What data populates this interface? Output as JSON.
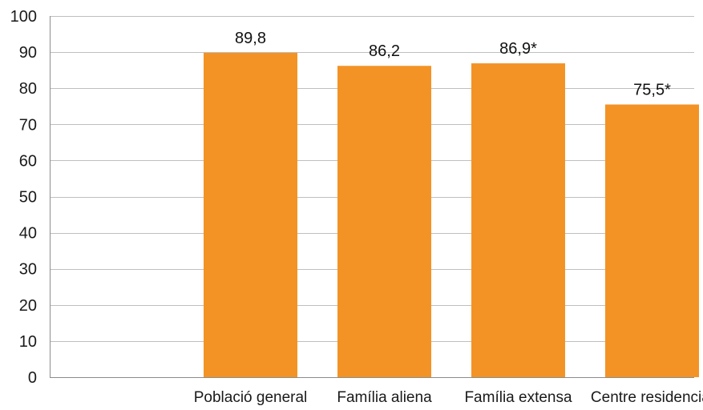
{
  "chart_data": {
    "type": "bar",
    "categories": [
      "Població general",
      "Família aliena",
      "Família extensa",
      "Centre residencial"
    ],
    "values": [
      89.8,
      86.2,
      86.9,
      75.5
    ],
    "data_labels": [
      "89,8",
      "86,2",
      "86,9*",
      "75,5*"
    ],
    "y_ticks": [
      0,
      10,
      20,
      30,
      40,
      50,
      60,
      70,
      80,
      90,
      100
    ],
    "ylim": [
      0,
      100
    ],
    "title": "",
    "xlabel": "",
    "ylabel": "",
    "grid": true,
    "legend": "none",
    "bar_color": "#F39325",
    "grid_color": "#bfbfbf"
  }
}
